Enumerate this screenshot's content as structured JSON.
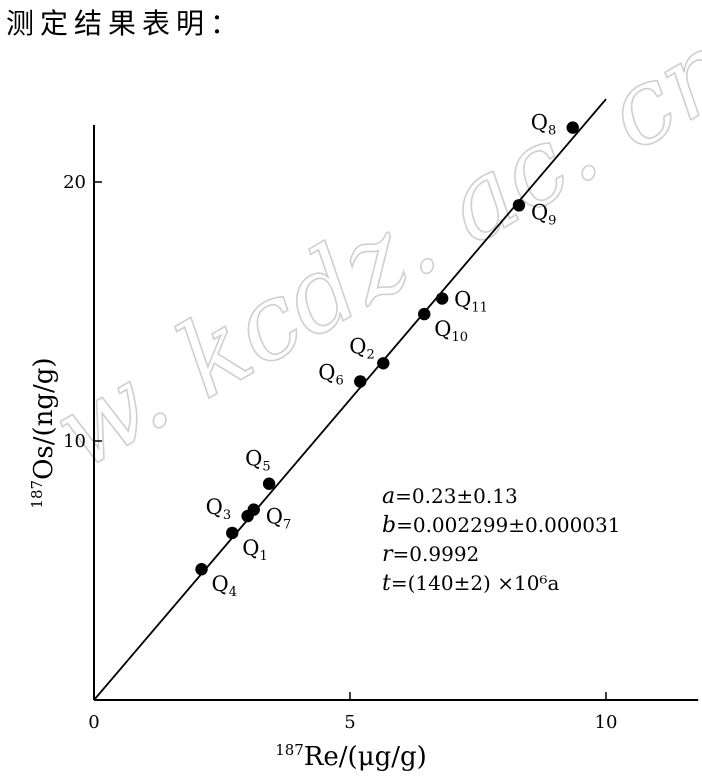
{
  "heading": "测定结果表明：",
  "watermark": "w. kcdz. ac. cn/",
  "chart_data": {
    "type": "scatter",
    "xlabel": {
      "sup": "187",
      "text": "Re/(μg/g)"
    },
    "ylabel": {
      "sup": "187",
      "text": "Os/(ng/g)"
    },
    "xlim": [
      0,
      11.8
    ],
    "ylim": [
      0,
      22.2
    ],
    "xticks": [
      0,
      5,
      10
    ],
    "yticks": [
      10,
      20
    ],
    "grid": false,
    "points": [
      {
        "name": "Q",
        "sub": "1",
        "x": 2.7,
        "y": 6.45
      },
      {
        "name": "Q",
        "sub": "2",
        "x": 5.65,
        "y": 13.0
      },
      {
        "name": "Q",
        "sub": "3",
        "x": 3.0,
        "y": 7.1
      },
      {
        "name": "Q",
        "sub": "4",
        "x": 2.1,
        "y": 5.05
      },
      {
        "name": "Q",
        "sub": "5",
        "x": 3.42,
        "y": 8.35
      },
      {
        "name": "Q",
        "sub": "6",
        "x": 5.2,
        "y": 12.3
      },
      {
        "name": "Q",
        "sub": "7",
        "x": 3.12,
        "y": 7.35
      },
      {
        "name": "Q",
        "sub": "8",
        "x": 9.35,
        "y": 22.1
      },
      {
        "name": "Q",
        "sub": "9",
        "x": 8.3,
        "y": 19.1
      },
      {
        "name": "Q",
        "sub": "10",
        "x": 6.45,
        "y": 14.9
      },
      {
        "name": "Q",
        "sub": "11",
        "x": 6.8,
        "y": 15.5
      }
    ],
    "fit_line": {
      "intercept": 0.0,
      "slope": 2.32,
      "x_end": 10.0
    },
    "annotations": [
      {
        "var": "a",
        "text": "=0.23±0.13"
      },
      {
        "var": "b",
        "text": "=0.002299±0.000031"
      },
      {
        "var": "r",
        "text": "=0.9992"
      },
      {
        "var": "t",
        "text": "=(140±2) ×10⁶a"
      }
    ]
  }
}
